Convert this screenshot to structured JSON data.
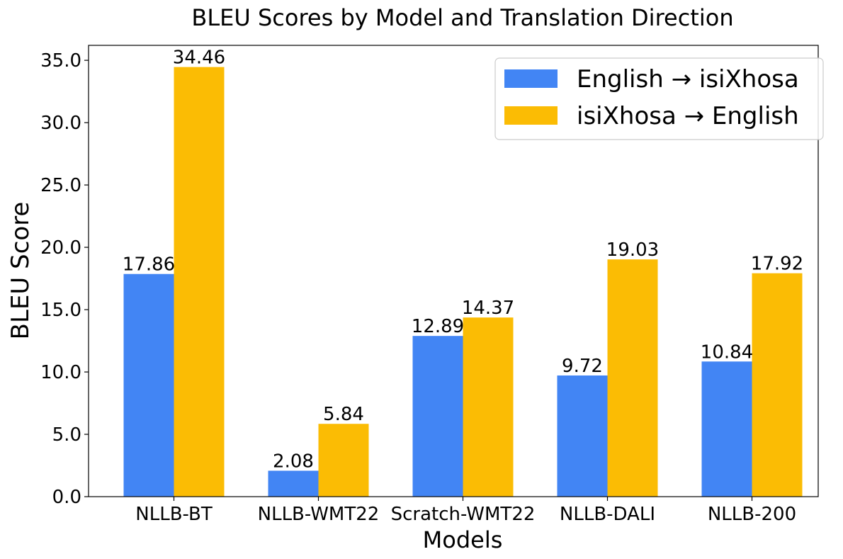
{
  "chart_data": {
    "type": "bar",
    "title": "BLEU Scores by Model and Translation Direction",
    "xlabel": "Models",
    "ylabel": "BLEU Score",
    "categories": [
      "NLLB-BT",
      "NLLB-WMT22",
      "Scratch-WMT22",
      "NLLB-DALI",
      "NLLB-200"
    ],
    "series": [
      {
        "name": "English → isiXhosa",
        "color": "#4285F4",
        "values": [
          17.86,
          2.08,
          12.89,
          9.72,
          10.84
        ]
      },
      {
        "name": "isiXhosa → English",
        "color": "#FBBC04",
        "values": [
          34.46,
          5.84,
          14.37,
          19.03,
          17.92
        ]
      }
    ],
    "yticks": [
      "0.0",
      "5.0",
      "10.0",
      "15.0",
      "20.0",
      "25.0",
      "30.0",
      "35.0"
    ],
    "ylim": [
      0,
      36.2
    ],
    "grid": false,
    "legend_position": "top-right"
  }
}
